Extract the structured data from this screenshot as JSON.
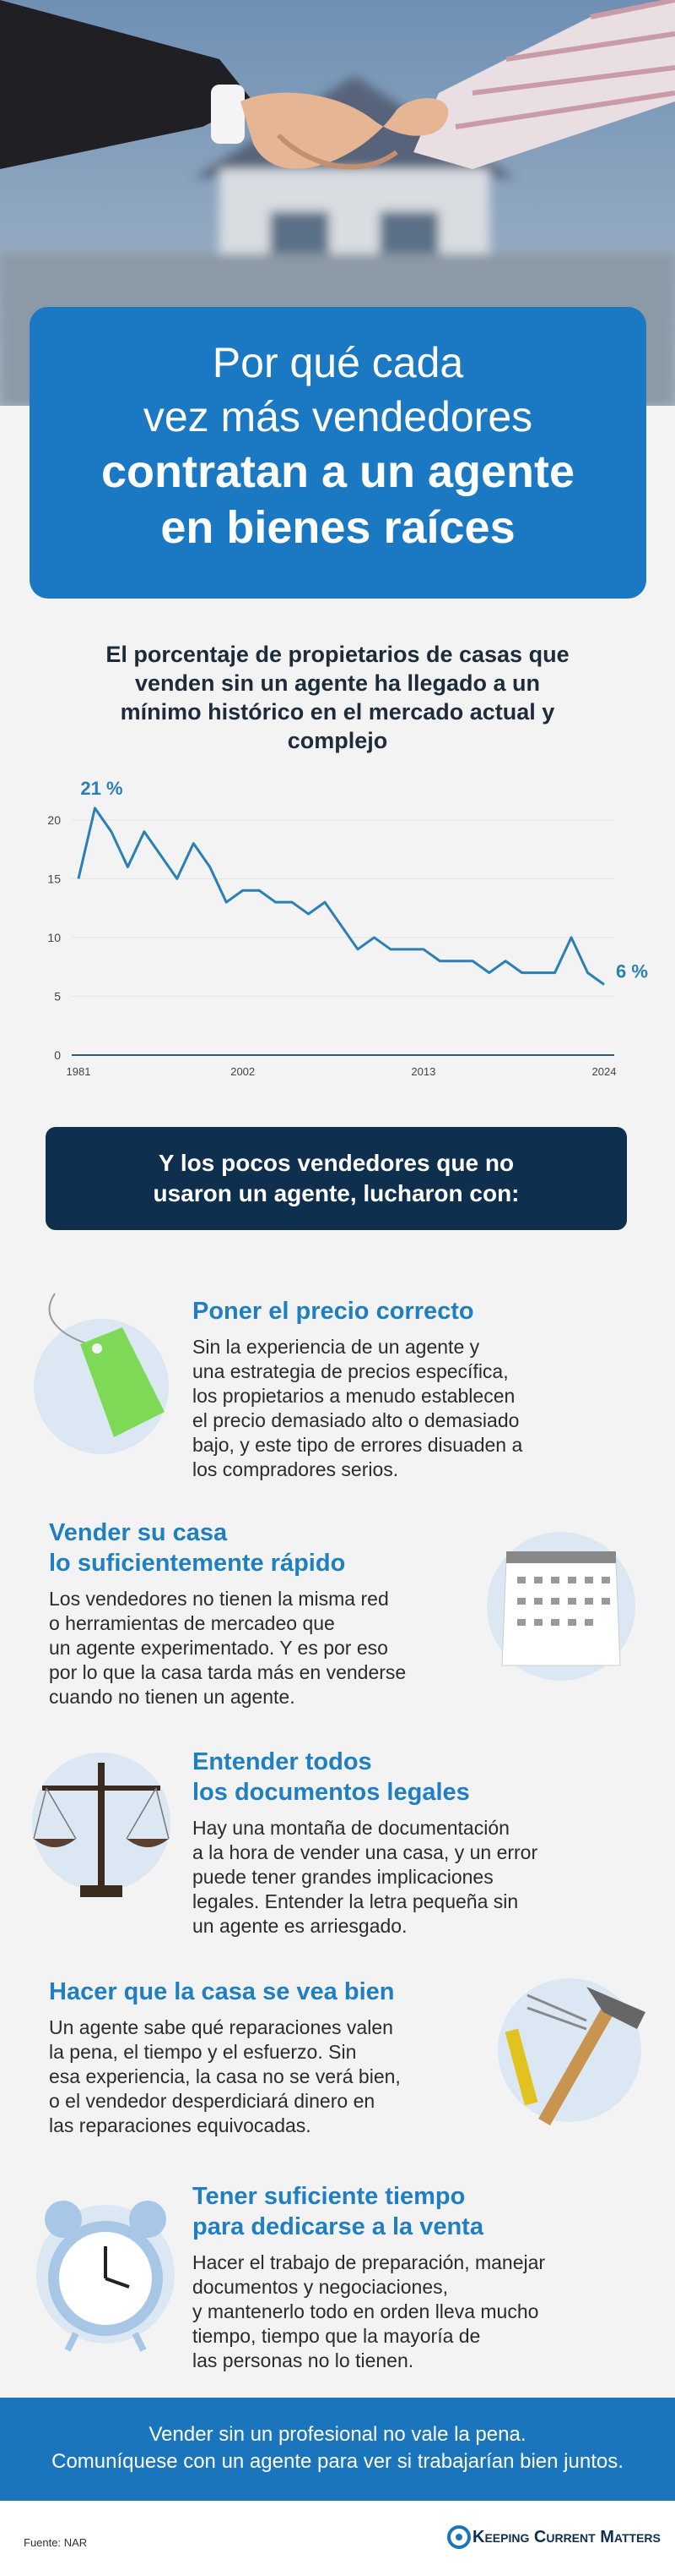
{
  "hero": {
    "title_lines": [
      "Por qué cada",
      "vez más vendedores"
    ],
    "title_bold_lines": [
      "contratan a un agente",
      "en bienes raíces"
    ]
  },
  "chart_data": {
    "type": "line",
    "title": "El porcentaje de propietarios de casas que venden sin un agente ha llegado a un mínimo histórico en el mercado actual y complejo",
    "categories": [
      "1981",
      null,
      null,
      null,
      null,
      null,
      null,
      null,
      null,
      null,
      "2002",
      null,
      null,
      null,
      null,
      null,
      null,
      null,
      null,
      null,
      null,
      "2013",
      null,
      null,
      null,
      null,
      null,
      null,
      null,
      null,
      null,
      null,
      "2024"
    ],
    "values": [
      15,
      21,
      19,
      16,
      19,
      17,
      15,
      18,
      16,
      13,
      14,
      14,
      13,
      13,
      12,
      13,
      11,
      9,
      10,
      9,
      9,
      9,
      8,
      8,
      8,
      7,
      8,
      7,
      7,
      7,
      10,
      7,
      6
    ],
    "value_labels": [
      null,
      "21 %",
      null,
      null,
      null,
      null,
      null,
      null,
      null,
      null,
      null,
      null,
      null,
      null,
      null,
      null,
      null,
      null,
      null,
      null,
      null,
      null,
      null,
      null,
      null,
      null,
      null,
      null,
      null,
      null,
      null,
      null,
      "6 %"
    ],
    "color": "#2a7fb5",
    "ylim": [
      0,
      22
    ],
    "yticks": [
      0,
      5,
      10,
      15,
      20
    ],
    "grid": true
  },
  "callout": "Y los pocos vendedores que no usaron un agente, lucharon con:",
  "items": [
    {
      "heading_lines": [
        "Poner el precio correcto"
      ],
      "text_lines": [
        "Sin la experiencia de un agente y",
        "una estrategia de precios específica,",
        "los propietarios a menudo establecen",
        "el precio demasiado alto o demasiado",
        "bajo, y este tipo de errores disuaden a",
        "los compradores serios."
      ]
    },
    {
      "heading_lines": [
        "Vender su casa",
        "lo suficientemente rápido"
      ],
      "text_lines": [
        "Los vendedores no tienen la misma red",
        "o herramientas de mercadeo que",
        "un agente experimentado. Y es por eso",
        "por lo que la casa tarda más en venderse",
        "cuando no tienen un agente."
      ]
    },
    {
      "heading_lines": [
        "Entender todos",
        "los documentos legales"
      ],
      "text_lines": [
        "Hay una montaña de documentación",
        "a la hora de vender una casa, y un error",
        "puede tener grandes implicaciones",
        "legales. Entender la letra pequeña sin",
        "un agente es arriesgado."
      ]
    },
    {
      "heading_lines": [
        "Hacer que la casa se vea bien"
      ],
      "text_lines": [
        "Un agente sabe qué reparaciones valen",
        "la pena, el tiempo y el esfuerzo. Sin",
        "esa experiencia, la casa no se verá bien,",
        "o el vendedor desperdiciará dinero en",
        "las reparaciones equivocadas."
      ]
    },
    {
      "heading_lines": [
        "Tener suficiente tiempo",
        "para dedicarse a la venta"
      ],
      "text_lines": [
        "Hacer el trabajo de preparación, manejar",
        "documentos y negociaciones,",
        "y mantenerlo todo en orden lleva mucho",
        "tiempo, tiempo que la mayoría de",
        "las personas no lo tienen."
      ]
    }
  ],
  "footer": {
    "lines": [
      "Vender sin un profesional no vale la pena.",
      "Comuníquese con un agente para ver si trabajarían bien juntos."
    ],
    "source": "Fuente: NAR",
    "logo": "Keeping Current Matters"
  }
}
